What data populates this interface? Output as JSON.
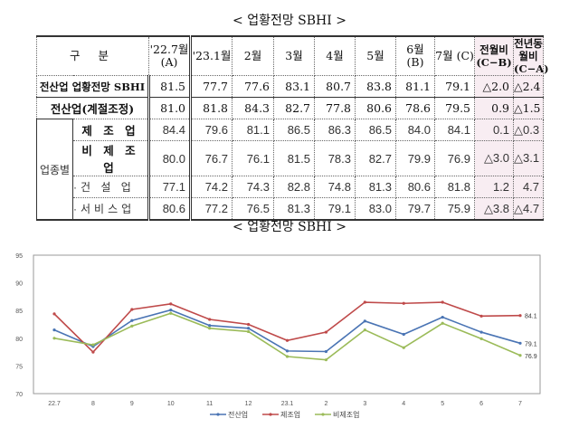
{
  "title1": "< 업황전망 SBHI >",
  "title2": "< 업황전망 SBHI >",
  "table": {
    "header_label": "구  분",
    "columns": [
      "'22.7월 (A)",
      "'23.1월",
      "2월",
      "3월",
      "4월",
      "5월",
      "6월 (B)",
      "7월 (C)",
      "전월비 (C−B)",
      "전년동월비 (C−A)"
    ],
    "group_label": "업종별",
    "rows": [
      {
        "label": "전산업 업황전망 SBHI",
        "values": [
          "81.5",
          "77.7",
          "77.6",
          "83.1",
          "80.7",
          "83.8",
          "81.1",
          "79.1",
          "△2.0",
          "△2.4"
        ]
      },
      {
        "label": "전산업(계절조정)",
        "values": [
          "81.0",
          "81.8",
          "84.3",
          "82.7",
          "77.8",
          "80.6",
          "78.6",
          "79.5",
          "0.9",
          "△1.5"
        ]
      },
      {
        "label": "제 조 업",
        "values": [
          "84.4",
          "79.6",
          "81.1",
          "86.5",
          "86.3",
          "86.5",
          "84.0",
          "84.1",
          "0.1",
          "△0.3"
        ]
      },
      {
        "label": "비 제 조 업",
        "values": [
          "80.0",
          "76.7",
          "76.1",
          "81.5",
          "78.3",
          "82.7",
          "79.9",
          "76.9",
          "△3.0",
          "△3.1"
        ]
      },
      {
        "label": "·건 설 업",
        "values": [
          "77.1",
          "74.2",
          "74.3",
          "82.8",
          "74.8",
          "81.3",
          "80.6",
          "81.8",
          "1.2",
          "4.7"
        ]
      },
      {
        "label": "·서비스업",
        "values": [
          "80.6",
          "77.2",
          "76.5",
          "81.3",
          "79.1",
          "83.0",
          "79.7",
          "75.9",
          "△3.8",
          "△4.7"
        ]
      }
    ]
  },
  "chart_data": {
    "type": "line",
    "x": [
      "22.7",
      "8",
      "9",
      "10",
      "11",
      "12",
      "23.1",
      "2",
      "3",
      "4",
      "5",
      "6",
      "7"
    ],
    "ylim": [
      70,
      95
    ],
    "yticks": [
      70,
      75,
      80,
      85,
      90,
      95
    ],
    "grid": false,
    "legend": "bottom",
    "series": [
      {
        "name": "전산업",
        "color": "#4a74b4",
        "values": [
          81.5,
          78.5,
          83.2,
          85.1,
          82.3,
          81.8,
          77.7,
          77.6,
          83.1,
          80.7,
          83.8,
          81.1,
          79.1
        ],
        "end_label": "79.1"
      },
      {
        "name": "제조업",
        "color": "#bf4a4a",
        "values": [
          84.4,
          77.5,
          85.2,
          86.2,
          83.4,
          82.5,
          79.6,
          81.1,
          86.5,
          86.3,
          86.5,
          84.0,
          84.1
        ],
        "end_label": "84.1"
      },
      {
        "name": "비제조업",
        "color": "#9bbb59",
        "values": [
          80.0,
          78.8,
          82.2,
          84.5,
          81.8,
          81.2,
          76.7,
          76.1,
          81.5,
          78.3,
          82.7,
          79.9,
          76.9
        ],
        "end_label": "76.9"
      }
    ]
  }
}
